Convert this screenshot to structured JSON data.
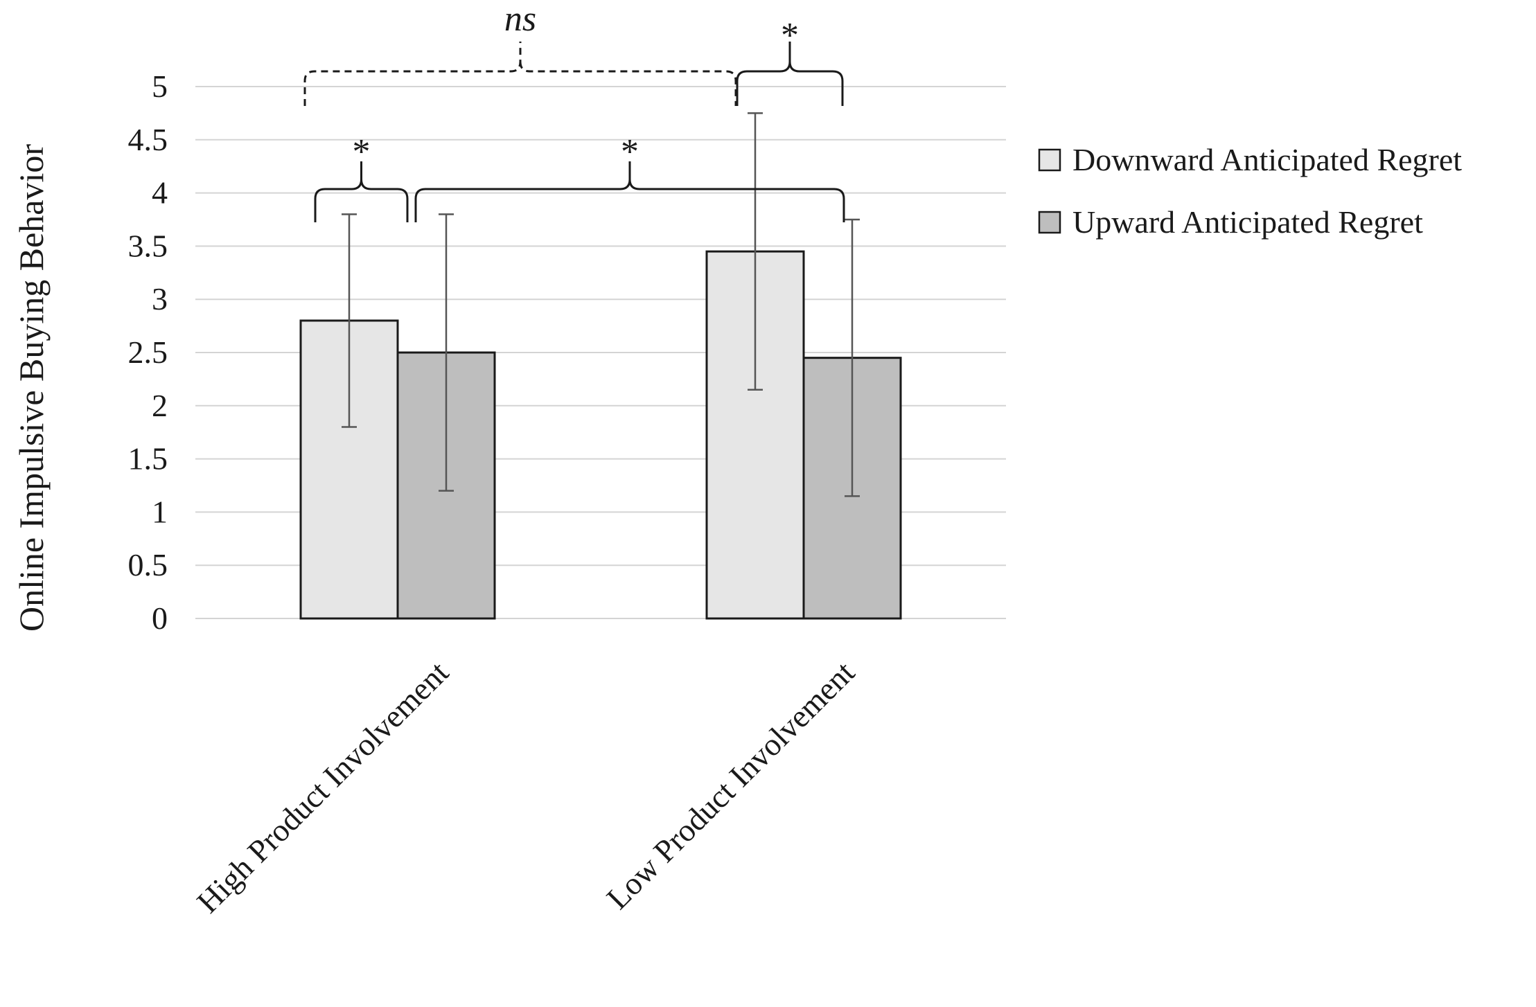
{
  "chart_data": {
    "type": "bar",
    "title": "",
    "xlabel": "",
    "ylabel": "Online Impulsive Buying  Behavior",
    "ylim": [
      0,
      5
    ],
    "yticks": [
      0,
      0.5,
      1,
      1.5,
      2,
      2.5,
      3,
      3.5,
      4,
      4.5,
      5
    ],
    "ytick_labels": [
      "0",
      "0.5",
      "1",
      "1.5",
      "2",
      "2.5",
      "3",
      "3.5",
      "4",
      "4.5",
      "5"
    ],
    "grid": true,
    "legend_position": "right",
    "categories": [
      "High Product Involvement",
      "Low  Product Involvement"
    ],
    "series": [
      {
        "name": "Downward Anticipated Regret",
        "color": "#e6e6e6",
        "values": [
          2.8,
          3.45
        ],
        "error": [
          1.0,
          1.3
        ]
      },
      {
        "name": "Upward Anticipated Regret",
        "color": "#bebebe",
        "values": [
          2.5,
          2.45
        ],
        "error": [
          1.3,
          1.3
        ]
      }
    ],
    "significance": [
      {
        "label": "*",
        "italic": false,
        "from": [
          0,
          0
        ],
        "to": [
          0,
          1
        ],
        "style": "solid"
      },
      {
        "label": "*",
        "italic": false,
        "from": [
          0,
          1
        ],
        "to": [
          1,
          1
        ],
        "style": "solid"
      },
      {
        "label": "ns",
        "italic": true,
        "from": [
          0,
          0
        ],
        "to": [
          1,
          0
        ],
        "style": "dashed"
      },
      {
        "label": "*",
        "italic": false,
        "from": [
          1,
          0
        ],
        "to": [
          1,
          1
        ],
        "style": "solid"
      }
    ]
  }
}
